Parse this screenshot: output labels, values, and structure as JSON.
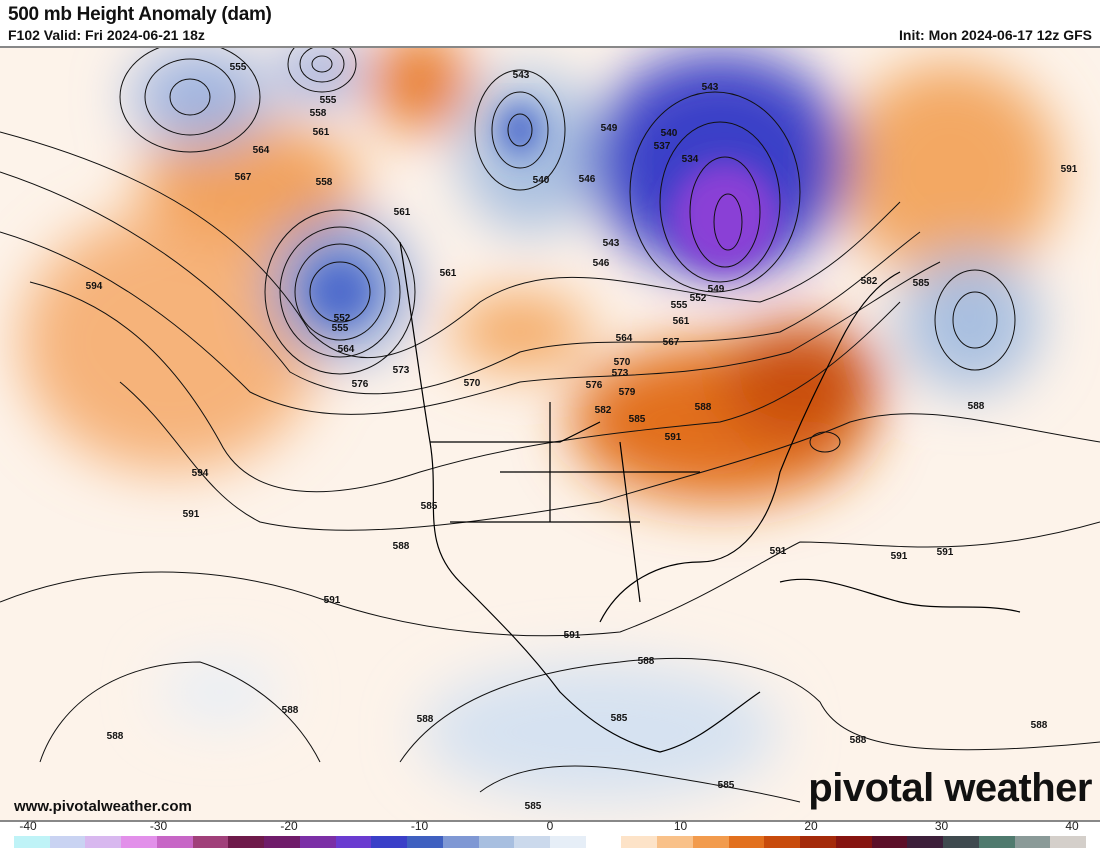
{
  "header": {
    "title": "500 mb Height Anomaly (dam)",
    "valid": "F102 Valid: Fri 2024-06-21 18z",
    "init": "Init: Mon 2024-06-17 12z GFS"
  },
  "footer": {
    "website": "www.pivotalweather.com",
    "logo": "pivotal weather"
  },
  "colorbar": {
    "ticks": [
      "-40",
      "-30",
      "-20",
      "-10",
      "0",
      "10",
      "20",
      "30",
      "40"
    ],
    "colors": [
      "#bff3f7",
      "#c9d3f2",
      "#d8b8ef",
      "#e290ea",
      "#c766c6",
      "#a0407a",
      "#6e1a4a",
      "#6f1c6a",
      "#7b2fa6",
      "#6a3bd0",
      "#3a3fc8",
      "#3f60c0",
      "#7f98d4",
      "#a8bfe0",
      "#cbd9ec",
      "#e6eef7",
      "#ffffff",
      "#fde3c8",
      "#f9c189",
      "#f29b4d",
      "#e2701e",
      "#c84b0c",
      "#a42a0a",
      "#861410",
      "#5c0f28",
      "#3d1f3a",
      "#3f4a4f",
      "#4f7a6e",
      "#8a9a98",
      "#d4cfca"
    ]
  },
  "contour_labels": [
    "555",
    "555",
    "558",
    "561",
    "564",
    "567",
    "558",
    "561",
    "561",
    "552",
    "555",
    "564",
    "576",
    "573",
    "570",
    "594",
    "594",
    "591",
    "585",
    "588",
    "591",
    "591",
    "588",
    "588",
    "588",
    "588",
    "585",
    "585",
    "585",
    "588",
    "588",
    "588",
    "591",
    "591",
    "591",
    "591",
    "585",
    "582",
    "543",
    "543",
    "549",
    "540",
    "537",
    "534",
    "540",
    "546",
    "543",
    "546",
    "549",
    "552",
    "555",
    "561",
    "564",
    "567",
    "570",
    "573",
    "576",
    "579",
    "582",
    "585",
    "588",
    "591"
  ]
}
